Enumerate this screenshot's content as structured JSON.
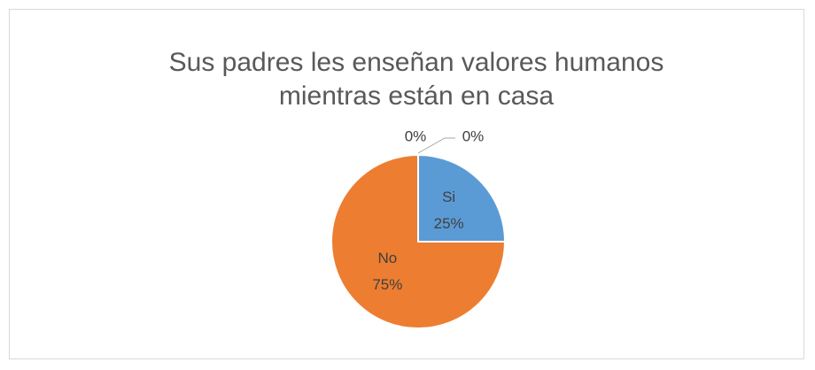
{
  "chart_data": {
    "type": "pie",
    "title": "Sus padres les enseñan valores humanos mientras están en casa",
    "categories": [
      "Si",
      "No",
      null,
      null
    ],
    "values": [
      25,
      75,
      0,
      0
    ],
    "value_labels": [
      "25%",
      "75%",
      "0%",
      "0%"
    ],
    "colors": [
      "#5b9bd5",
      "#ed7d31",
      "#a5a5a5",
      "#ffc000"
    ]
  }
}
